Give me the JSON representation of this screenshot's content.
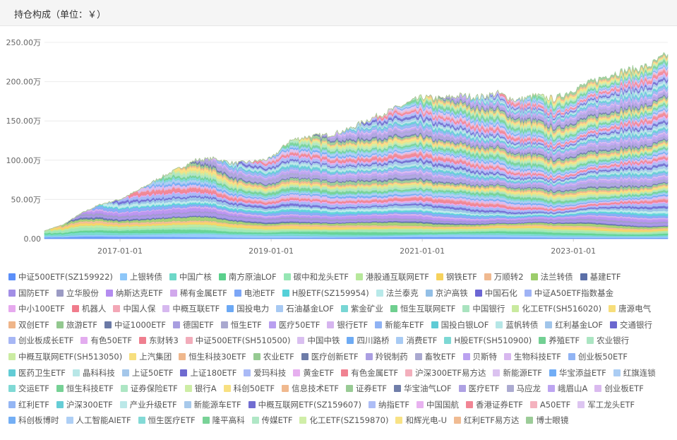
{
  "header": {
    "title": "持仓构成（单位：￥）"
  },
  "chart_data": {
    "type": "area",
    "stacked": true,
    "x_start": "2016-01",
    "x_end": "2024-04",
    "x_ticks": [
      "2017-01-01",
      "2019-01-01",
      "2021-01-01",
      "2023-01-01"
    ],
    "y_ticks": [
      "0.00",
      "50.00万",
      "100.00万",
      "150.00万",
      "200.00万",
      "250.00万"
    ],
    "ylim": [
      0,
      2500000
    ],
    "total": [
      [
        "2016-01",
        100000
      ],
      [
        "2016-04",
        180000
      ],
      [
        "2016-07",
        330000
      ],
      [
        "2016-10",
        440000
      ],
      [
        "2017-01",
        500000
      ],
      [
        "2017-04",
        620000
      ],
      [
        "2017-07",
        760000
      ],
      [
        "2017-10",
        880000
      ],
      [
        "2018-01",
        1000000
      ],
      [
        "2018-04",
        1020000
      ],
      [
        "2018-07",
        960000
      ],
      [
        "2018-10",
        980000
      ],
      [
        "2019-01",
        1020000
      ],
      [
        "2019-04",
        1250000
      ],
      [
        "2019-07",
        1300000
      ],
      [
        "2019-10",
        1320000
      ],
      [
        "2020-01",
        1380000
      ],
      [
        "2020-04",
        1500000
      ],
      [
        "2020-07",
        1600000
      ],
      [
        "2020-10",
        1700000
      ],
      [
        "2021-01",
        1800000
      ],
      [
        "2021-04",
        1780000
      ],
      [
        "2021-07",
        1820000
      ],
      [
        "2021-10",
        1800000
      ],
      [
        "2022-01",
        1850000
      ],
      [
        "2022-04",
        1760000
      ],
      [
        "2022-07",
        1820000
      ],
      [
        "2022-10",
        1780000
      ],
      [
        "2023-01",
        1900000
      ],
      [
        "2023-04",
        2000000
      ],
      [
        "2023-07",
        2100000
      ],
      [
        "2023-10",
        2150000
      ],
      [
        "2024-01",
        2200000
      ],
      [
        "2024-04",
        2350000
      ]
    ],
    "series": [
      {
        "name": "中证500ETF(SZ159922)",
        "color": "#5b8ff9"
      },
      {
        "name": "上银转债",
        "color": "#8ec7f9"
      },
      {
        "name": "中国广核",
        "color": "#6dd8c8"
      },
      {
        "name": "南方原油LOF",
        "color": "#5ad08c"
      },
      {
        "name": "碳中和龙头ETF",
        "color": "#96e6b4"
      },
      {
        "name": "港股通互联网ETF",
        "color": "#b7e89c"
      },
      {
        "name": "钢铁ETF",
        "color": "#f6d25c"
      },
      {
        "name": "万顺转2",
        "color": "#f0b990"
      },
      {
        "name": "法兰转债",
        "color": "#9ccd6b"
      },
      {
        "name": "基建ETF",
        "color": "#5b6fa8"
      },
      {
        "name": "国防ETF",
        "color": "#a28ee6"
      },
      {
        "name": "立华股份",
        "color": "#9b9bc4"
      },
      {
        "name": "纳斯达克ETF",
        "color": "#b48cf0"
      },
      {
        "name": "稀有金属ETF",
        "color": "#d1a8ec"
      },
      {
        "name": "电池ETF",
        "color": "#7ca6f6"
      },
      {
        "name": "H股ETF(SZ159954)",
        "color": "#55d0d8"
      },
      {
        "name": "法兰泰克",
        "color": "#b8e9e9"
      },
      {
        "name": "京沪高铁",
        "color": "#93bfe6"
      },
      {
        "name": "中国石化",
        "color": "#6c66d4"
      },
      {
        "name": "中证A50ETF指数基金",
        "color": "#9fb3f5"
      },
      {
        "name": "中小100ETF",
        "color": "#e6a9ee"
      },
      {
        "name": "机器人",
        "color": "#f07c8c"
      },
      {
        "name": "中国人保",
        "color": "#f3a7b6"
      },
      {
        "name": "中概互联ETF",
        "color": "#d6b8ef"
      },
      {
        "name": "国投电力",
        "color": "#6ca9f5"
      },
      {
        "name": "石油基金LOF",
        "color": "#a7c9f3"
      },
      {
        "name": "紫金矿业",
        "color": "#78d6d4"
      },
      {
        "name": "恒生互联网ETF",
        "color": "#6fcf8f"
      },
      {
        "name": "中国银行",
        "color": "#a9e3bf"
      },
      {
        "name": "化工ETF(SH516020)",
        "color": "#c9ea9f"
      },
      {
        "name": "唐源电气",
        "color": "#f7de7a"
      },
      {
        "name": "双创ETF",
        "color": "#efb589"
      },
      {
        "name": "旅游ETF",
        "color": "#93c88f"
      },
      {
        "name": "中证1000ETF",
        "color": "#6b7aa6"
      },
      {
        "name": "德国ETF",
        "color": "#a89ee0"
      },
      {
        "name": "恒生ETF",
        "color": "#a9a8cf"
      },
      {
        "name": "医疗50ETF",
        "color": "#b99ff0"
      },
      {
        "name": "银行ETF",
        "color": "#d6b5ef"
      },
      {
        "name": "新能车ETF",
        "color": "#8fb2f4"
      },
      {
        "name": "国投白银LOF",
        "color": "#5fcbd5"
      },
      {
        "name": "蓝帆转债",
        "color": "#b5e6e6"
      },
      {
        "name": "红利基金LOF",
        "color": "#a1c5ea"
      },
      {
        "name": "交通银行",
        "color": "#6b67cf"
      },
      {
        "name": "创业板成长ETF",
        "color": "#a7b7f5"
      },
      {
        "name": "有色50ETF",
        "color": "#e3acef"
      },
      {
        "name": "东财转3",
        "color": "#ef7f8f"
      },
      {
        "name": "中证500ETF(SH510500)",
        "color": "#f2acba"
      },
      {
        "name": "中国中铁",
        "color": "#d9bff0"
      },
      {
        "name": "四川路桥",
        "color": "#6eabf4"
      },
      {
        "name": "消费ETF",
        "color": "#a8cbf4"
      },
      {
        "name": "H股ETF(SH510900)",
        "color": "#7dd8d4"
      },
      {
        "name": "养殖ETF",
        "color": "#73d093"
      },
      {
        "name": "农业银行",
        "color": "#abe5c2"
      },
      {
        "name": "中概互联网ETF(SH513050)",
        "color": "#cbeca2"
      },
      {
        "name": "上汽集团",
        "color": "#f7df7e"
      },
      {
        "name": "恒生科技30ETF",
        "color": "#efb78c"
      },
      {
        "name": "农业ETF",
        "color": "#96ca92"
      },
      {
        "name": "医疗创新ETF",
        "color": "#6d7ca8"
      },
      {
        "name": "羚锐制药",
        "color": "#ab9fe2"
      },
      {
        "name": "畜牧ETF",
        "color": "#aaa9d0"
      },
      {
        "name": "贝斯特",
        "color": "#bba2f0"
      },
      {
        "name": "生物科技ETF",
        "color": "#d8b8ef"
      },
      {
        "name": "创业板50ETF",
        "color": "#91b4f4"
      },
      {
        "name": "医药卫生ETF",
        "color": "#62ccd5"
      },
      {
        "name": "晶科科技",
        "color": "#b8e7e7"
      },
      {
        "name": "上证50ETF",
        "color": "#a4c7ea"
      },
      {
        "name": "上证180ETF",
        "color": "#6e6ad0"
      },
      {
        "name": "爱玛科技",
        "color": "#aabaf6"
      },
      {
        "name": "黄金ETF",
        "color": "#e6afef"
      },
      {
        "name": "有色金属ETF",
        "color": "#f08291"
      },
      {
        "name": "沪深300ETF易方达",
        "color": "#f3afbc"
      },
      {
        "name": "新能源ETF",
        "color": "#dbc2f0"
      },
      {
        "name": "华宝添益ETF",
        "color": "#71adf5"
      },
      {
        "name": "红旗连锁",
        "color": "#abcdf4"
      },
      {
        "name": "交运ETF",
        "color": "#80d9d5"
      },
      {
        "name": "恒生科技ETF",
        "color": "#76d195"
      },
      {
        "name": "证券保险ETF",
        "color": "#ade6c4"
      },
      {
        "name": "银行A",
        "color": "#cdeda5"
      },
      {
        "name": "科创50ETF",
        "color": "#f8e081"
      },
      {
        "name": "信息技术ETF",
        "color": "#f0b98f"
      },
      {
        "name": "证券ETF",
        "color": "#99cb95"
      },
      {
        "name": "华宝油气LOF",
        "color": "#707ea9"
      },
      {
        "name": "医疗ETF",
        "color": "#aea1e3"
      },
      {
        "name": "马应龙",
        "color": "#acabd1"
      },
      {
        "name": "峨眉山A",
        "color": "#bda5f1"
      },
      {
        "name": "创业板ETF",
        "color": "#dabaef"
      },
      {
        "name": "红利ETF",
        "color": "#94b6f4"
      },
      {
        "name": "沪深300ETF",
        "color": "#65cdd6"
      },
      {
        "name": "产业升级ETF",
        "color": "#bbe8e8"
      },
      {
        "name": "新能源车ETF",
        "color": "#a7c9eb"
      },
      {
        "name": "中概互联网ETF(SZ159607)",
        "color": "#716dd1"
      },
      {
        "name": "纳指ETF",
        "color": "#adbdf6"
      },
      {
        "name": "中国国航",
        "color": "#e8b2f0"
      },
      {
        "name": "香港证券ETF",
        "color": "#f18594"
      },
      {
        "name": "A50ETF",
        "color": "#f4b2be"
      },
      {
        "name": "军工龙头ETF",
        "color": "#ddc5f1"
      },
      {
        "name": "科创板博时",
        "color": "#74aff5"
      },
      {
        "name": "人工智能AIETF",
        "color": "#aecff5"
      },
      {
        "name": "恒生医疗ETF",
        "color": "#83dad6"
      },
      {
        "name": "隆平高科",
        "color": "#79d297"
      },
      {
        "name": "传媒ETF",
        "color": "#b0e7c6"
      },
      {
        "name": "化工ETF(SZ159870)",
        "color": "#d0eea8"
      },
      {
        "name": "和辉光电-U",
        "color": "#f8e285"
      },
      {
        "name": "红利ETF易方达",
        "color": "#f0bb92"
      },
      {
        "name": "博士眼镜",
        "color": "#9ccc98"
      }
    ]
  }
}
